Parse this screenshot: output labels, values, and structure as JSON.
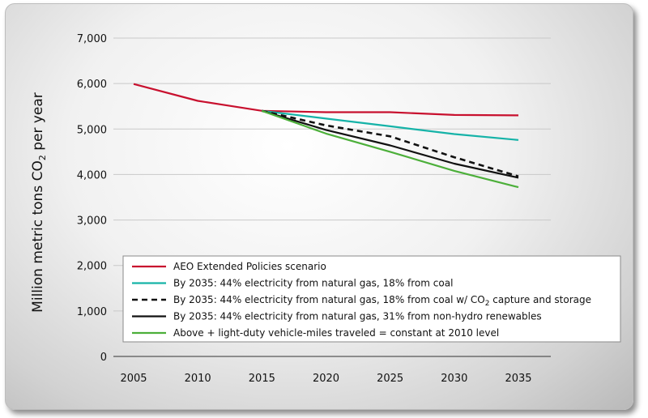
{
  "chart_data": {
    "type": "line",
    "title": "",
    "ylabel_main": "Million metric tons CO",
    "ylabel_sub": "2",
    "ylabel_tail": " per year",
    "xlabel": "",
    "ylim": [
      0,
      7000
    ],
    "yticks": [
      "0",
      "1,000",
      "2,000",
      "3,000",
      "4,000",
      "5,000",
      "6,000",
      "7,000"
    ],
    "x": [
      2005,
      2010,
      2015,
      2020,
      2025,
      2030,
      2035
    ],
    "xticks": [
      "2005",
      "2010",
      "2015",
      "2020",
      "2025",
      "2030",
      "2035"
    ],
    "grid": true,
    "legend_position": "bottom",
    "series": [
      {
        "name": "AEO Extended Policies scenario",
        "color": "#c8102e",
        "dashed": false,
        "points": [
          [
            2005,
            5990
          ],
          [
            2010,
            5620
          ],
          [
            2015,
            5400
          ],
          [
            2020,
            5370
          ],
          [
            2025,
            5370
          ],
          [
            2030,
            5310
          ],
          [
            2035,
            5300
          ]
        ]
      },
      {
        "name": "By 2035: 44% electricity from natural gas, 18% from coal",
        "color": "#16b3a8",
        "dashed": false,
        "points": [
          [
            2015,
            5400
          ],
          [
            2020,
            5230
          ],
          [
            2025,
            5060
          ],
          [
            2030,
            4890
          ],
          [
            2035,
            4760
          ]
        ]
      },
      {
        "name": "By 2035: 44% electricity from natural gas, 18% from coal w/ CO",
        "name_sub": "2",
        "name_tail": " capture and storage",
        "color": "#111111",
        "dashed": true,
        "points": [
          [
            2015,
            5400
          ],
          [
            2020,
            5080
          ],
          [
            2025,
            4840
          ],
          [
            2030,
            4380
          ],
          [
            2035,
            3960
          ]
        ]
      },
      {
        "name": "By 2035: 44% electricity from natural gas, 31% from non-hydro renewables",
        "color": "#111111",
        "dashed": false,
        "points": [
          [
            2015,
            5400
          ],
          [
            2020,
            4980
          ],
          [
            2025,
            4640
          ],
          [
            2030,
            4240
          ],
          [
            2035,
            3930
          ]
        ]
      },
      {
        "name": "Above + light-duty vehicle-miles traveled = constant at 2010 level",
        "color": "#4caf3a",
        "dashed": false,
        "points": [
          [
            2015,
            5400
          ],
          [
            2020,
            4900
          ],
          [
            2025,
            4500
          ],
          [
            2030,
            4080
          ],
          [
            2035,
            3720
          ]
        ]
      }
    ]
  }
}
